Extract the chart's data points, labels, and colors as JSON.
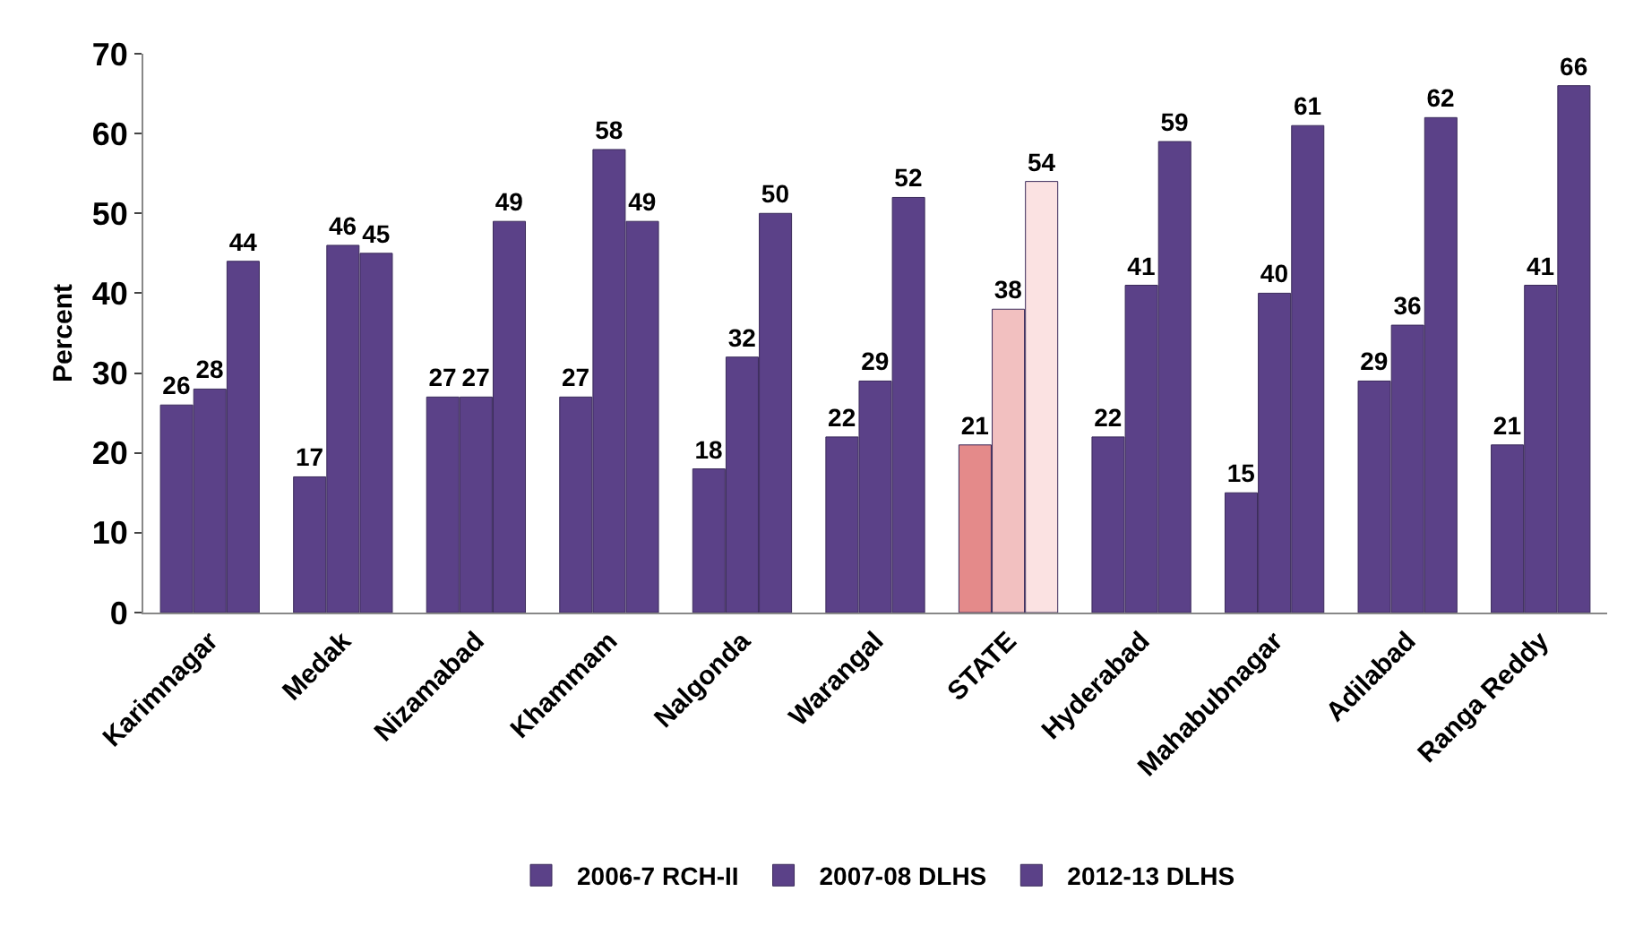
{
  "chart_data": {
    "type": "bar",
    "ylabel": "Percent",
    "categories": [
      "Karimnagar",
      "Medak",
      "Nizamabad",
      "Khammam",
      "Nalgonda",
      "Warangal",
      "STATE",
      "Hyderabad",
      "Mahabubnagar",
      "Adilabad",
      "Ranga Reddy"
    ],
    "series": [
      {
        "name": "2006-7 RCH-II",
        "color": "#5b4188",
        "colors": [
          "#5b4188",
          "#5b4188",
          "#5b4188",
          "#5b4188",
          "#5b4188",
          "#5b4188",
          "#e48a8a",
          "#5b4188",
          "#5b4188",
          "#5b4188",
          "#5b4188"
        ],
        "values": [
          26,
          17,
          27,
          27,
          18,
          22,
          21,
          22,
          15,
          29,
          21
        ]
      },
      {
        "name": "2007-08 DLHS",
        "color": "#5b4188",
        "colors": [
          "#5b4188",
          "#5b4188",
          "#5b4188",
          "#5b4188",
          "#5b4188",
          "#5b4188",
          "#f2c0c0",
          "#5b4188",
          "#5b4188",
          "#5b4188",
          "#5b4188"
        ],
        "values": [
          28,
          46,
          27,
          58,
          32,
          29,
          38,
          41,
          40,
          36,
          41
        ]
      },
      {
        "name": "2012-13 DLHS",
        "color": "#5b4188",
        "colors": [
          "#5b4188",
          "#5b4188",
          "#5b4188",
          "#5b4188",
          "#5b4188",
          "#5b4188",
          "#fbe2e2",
          "#5b4188",
          "#5b4188",
          "#5b4188",
          "#5b4188"
        ],
        "values": [
          44,
          45,
          49,
          49,
          50,
          52,
          54,
          59,
          61,
          62,
          66
        ]
      }
    ],
    "ylim": [
      0,
      70
    ],
    "yticks": [
      0,
      10,
      20,
      30,
      40,
      50,
      60,
      70
    ],
    "grid": false,
    "legend": "bottom",
    "data_labels": true
  }
}
